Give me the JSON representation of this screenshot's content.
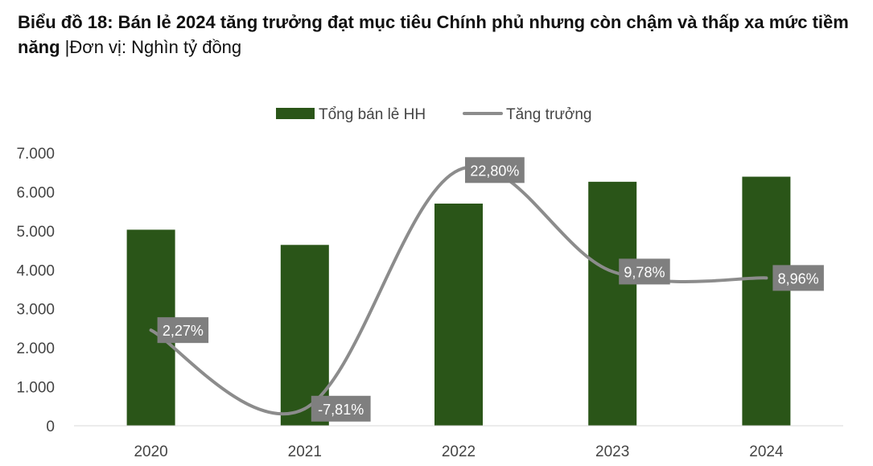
{
  "title": {
    "bold": "Biểu đồ 18: Bán lẻ 2024 tăng trưởng đạt mục tiêu Chính phủ nhưng còn chậm và thấp xa mức tiềm năng",
    "unit": " |Đơn vị: Nghìn tỷ đồng"
  },
  "colors": {
    "bar": "#2a5518",
    "line": "#8c8c8c",
    "label_bg": "#7f7f7f",
    "axis": "#d9d9d9"
  },
  "chart_data": {
    "type": "bar",
    "categories": [
      "2020",
      "2021",
      "2022",
      "2023",
      "2024"
    ],
    "series": [
      {
        "name": "Tổng bán lẻ HH",
        "type": "bar",
        "axis": "left",
        "values": [
          5030,
          4640,
          5700,
          6260,
          6390
        ]
      },
      {
        "name": "Tăng trưởng",
        "type": "line",
        "axis": "right",
        "values": [
          2.27,
          -7.81,
          22.8,
          9.78,
          8.96
        ],
        "labels": [
          "2,27%",
          "-7,81%",
          "22,80%",
          "9,78%",
          "8,96%"
        ]
      }
    ],
    "y_ticks": [
      "0",
      "1.000",
      "2.000",
      "3.000",
      "4.000",
      "5.000",
      "6.000",
      "7.000"
    ],
    "ylim": [
      0,
      7000
    ],
    "y2lim": [
      -10,
      25
    ],
    "legend_position": "top-center",
    "grid": false
  }
}
